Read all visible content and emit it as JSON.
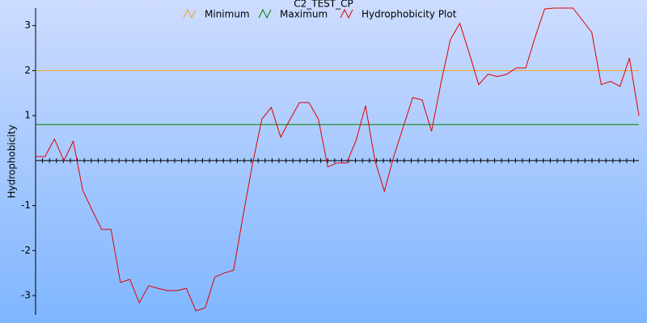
{
  "chart_data": {
    "type": "line",
    "title": "C2_TEST_CP",
    "y_label": "Hydrophobicity",
    "ylim": [
      -3.43,
      3.39
    ],
    "yticks": [
      -3,
      -2,
      -1,
      1,
      2,
      3
    ],
    "series": [
      {
        "name": "Minimum",
        "color": "#f0a030",
        "kind": "hline",
        "values": [
          2
        ]
      },
      {
        "name": "Maximum",
        "color": "#008000",
        "kind": "hline",
        "values": [
          0.8
        ]
      },
      {
        "name": "Hydrophobicity Plot",
        "color": "#e00000",
        "kind": "line",
        "values": [
          0.09,
          0.09,
          0.48,
          0,
          0.43,
          -0.66,
          -1.1,
          -1.53,
          -1.53,
          -2.71,
          -2.64,
          -3.16,
          -2.78,
          -2.84,
          -2.89,
          -2.89,
          -2.84,
          -3.34,
          -3.27,
          -2.59,
          -2.5,
          -2.44,
          -1.24,
          -0.09,
          0.92,
          1.18,
          0.52,
          0.92,
          1.29,
          1.29,
          0.92,
          -0.14,
          -0.05,
          -0.05,
          0.45,
          1.22,
          0,
          -0.68,
          0.09,
          0.75,
          1.4,
          1.35,
          0.65,
          1.72,
          2.69,
          3.05,
          2.39,
          1.69,
          1.92,
          1.87,
          1.92,
          2.06,
          2.06,
          2.75,
          3.37,
          3.39,
          3.39,
          3.39,
          3.12,
          2.85,
          1.69,
          1.76,
          1.65,
          2.28,
          1.0
        ]
      }
    ]
  }
}
